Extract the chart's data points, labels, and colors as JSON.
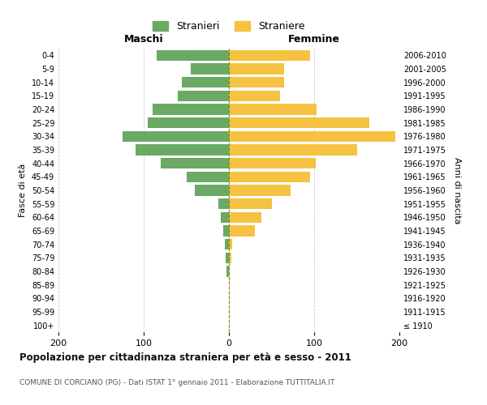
{
  "age_groups": [
    "100+",
    "95-99",
    "90-94",
    "85-89",
    "80-84",
    "75-79",
    "70-74",
    "65-69",
    "60-64",
    "55-59",
    "50-54",
    "45-49",
    "40-44",
    "35-39",
    "30-34",
    "25-29",
    "20-24",
    "15-19",
    "10-14",
    "5-9",
    "0-4"
  ],
  "birth_years": [
    "≤ 1910",
    "1911-1915",
    "1916-1920",
    "1921-1925",
    "1926-1930",
    "1931-1935",
    "1936-1940",
    "1941-1945",
    "1946-1950",
    "1951-1955",
    "1956-1960",
    "1961-1965",
    "1966-1970",
    "1971-1975",
    "1976-1980",
    "1981-1985",
    "1986-1990",
    "1991-1995",
    "1996-2000",
    "2001-2005",
    "2006-2010"
  ],
  "males": [
    0,
    0,
    0,
    0,
    3,
    4,
    5,
    7,
    10,
    12,
    40,
    50,
    80,
    110,
    125,
    95,
    90,
    60,
    55,
    45,
    85
  ],
  "females": [
    0,
    0,
    0,
    0,
    0,
    3,
    4,
    30,
    38,
    50,
    72,
    95,
    102,
    150,
    195,
    165,
    103,
    60,
    65,
    65,
    95
  ],
  "male_color": "#6aaa64",
  "female_color": "#f5c242",
  "title": "Popolazione per cittadinanza straniera per età e sesso - 2011",
  "subtitle": "COMUNE DI CORCIANO (PG) - Dati ISTAT 1° gennaio 2011 - Elaborazione TUTTITALIA.IT",
  "xlabel_left": "Maschi",
  "xlabel_right": "Femmine",
  "ylabel_left": "Fasce di età",
  "ylabel_right": "Anni di nascita",
  "legend_male": "Stranieri",
  "legend_female": "Straniere",
  "xlim": 200,
  "background_color": "#ffffff",
  "grid_color": "#cccccc"
}
